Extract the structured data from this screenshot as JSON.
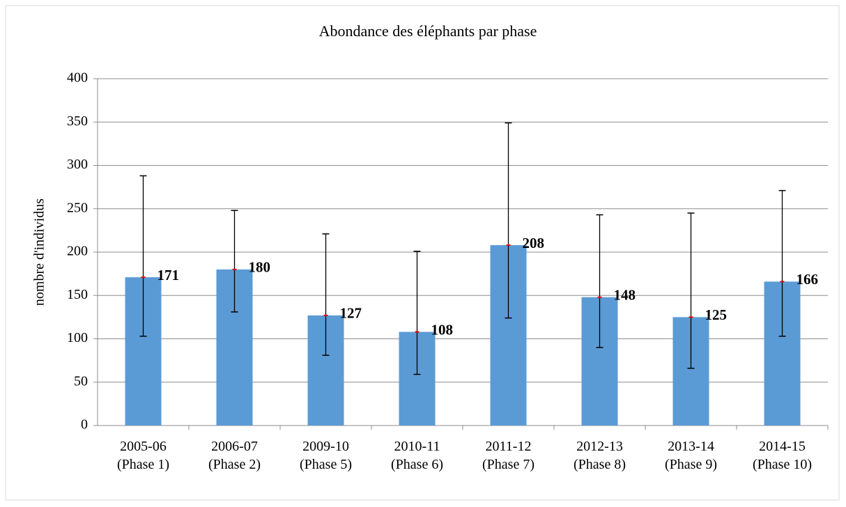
{
  "chart_data": {
    "type": "bar",
    "title": "Abondance des éléphants par phase",
    "y_label": "nombre d'individus",
    "categories": [
      "2005-06 (Phase 1)",
      "2006-07 (Phase 2)",
      "2009-10 (Phase 5)",
      "2010-11 (Phase 6)",
      "2011-12 (Phase 7)",
      "2012-13 (Phase 8)",
      "2013-14 (Phase 9)",
      "2014-15 (Phase 10)"
    ],
    "values": [
      171,
      180,
      127,
      108,
      208,
      148,
      125,
      166
    ],
    "ci_low": [
      103,
      131,
      81,
      59,
      124,
      90,
      66,
      103
    ],
    "ci_high": [
      288,
      248,
      221,
      201,
      349,
      243,
      245,
      271
    ],
    "color": "#5b9bd5",
    "ylim": [
      0,
      400
    ],
    "yticks": [
      0,
      50,
      100,
      150,
      200,
      250,
      300,
      350,
      400
    ],
    "grid": true
  }
}
